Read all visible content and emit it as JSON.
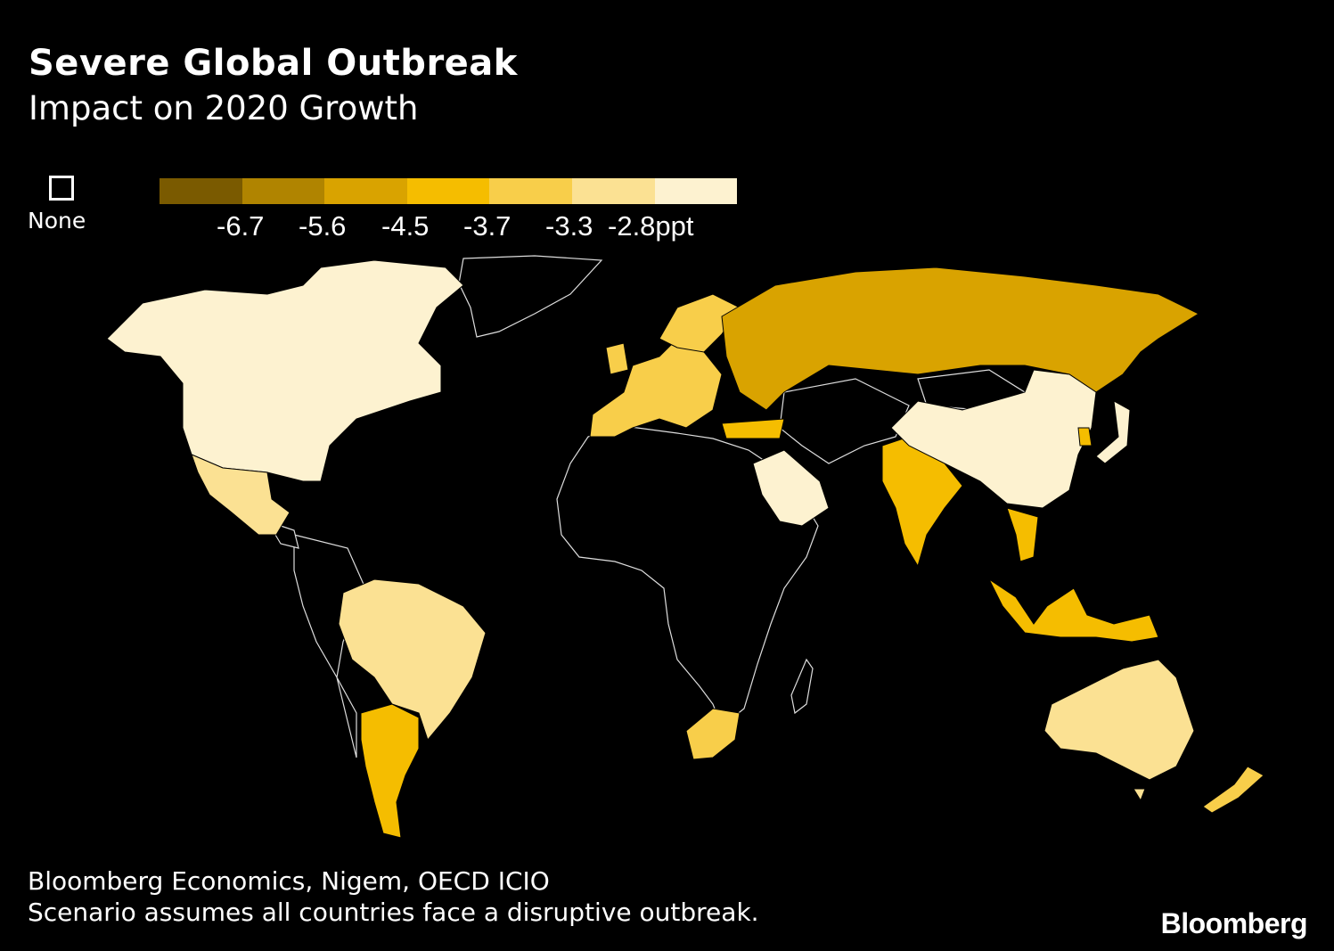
{
  "header": {
    "title": "Severe Global Outbreak",
    "subtitle": "Impact on 2020 Growth"
  },
  "legend": {
    "none_label": "None",
    "colors": [
      "#7a5a00",
      "#b08400",
      "#d9a300",
      "#f5bd00",
      "#f8ce4a",
      "#fbe193",
      "#fdf2d0"
    ],
    "ticks": [
      "-6.7",
      "-5.6",
      "-4.5",
      "-3.7",
      "-3.3",
      "-2.8ppt"
    ]
  },
  "map": {
    "regions": [
      {
        "name": "North America",
        "bin": 6
      },
      {
        "name": "Mexico",
        "bin": 5
      },
      {
        "name": "Brazil",
        "bin": 5
      },
      {
        "name": "Argentina",
        "bin": 3
      },
      {
        "name": "Western Europe",
        "bin": 4
      },
      {
        "name": "Russia",
        "bin": 2
      },
      {
        "name": "Turkey",
        "bin": 3
      },
      {
        "name": "Saudi Arabia",
        "bin": 6
      },
      {
        "name": "India",
        "bin": 3
      },
      {
        "name": "China",
        "bin": 6
      },
      {
        "name": "Japan",
        "bin": 6
      },
      {
        "name": "South Korea",
        "bin": 3
      },
      {
        "name": "Southeast Asia",
        "bin": 3
      },
      {
        "name": "Australia",
        "bin": 5
      },
      {
        "name": "New Zealand",
        "bin": 4
      },
      {
        "name": "South Africa",
        "bin": 4
      }
    ]
  },
  "footer": {
    "source": "Bloomberg Economics, Nigem, OECD ICIO",
    "note": "Scenario assumes all countries face a disruptive outbreak.",
    "brand": "Bloomberg"
  }
}
